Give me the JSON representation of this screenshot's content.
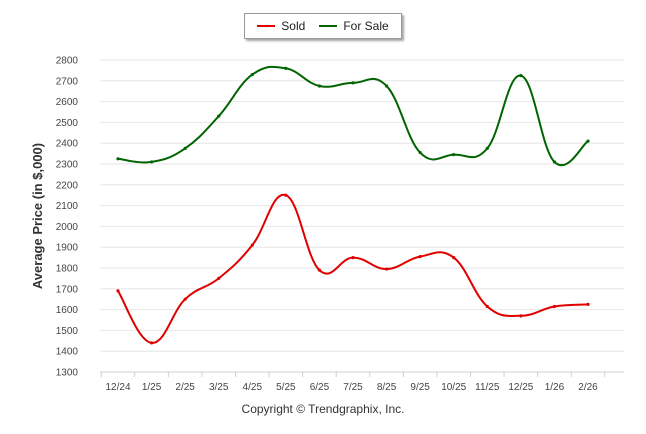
{
  "chart_data": {
    "type": "line",
    "categories": [
      "12/24",
      "1/25",
      "2/25",
      "3/25",
      "4/25",
      "5/25",
      "6/25",
      "7/25",
      "8/25",
      "9/25",
      "10/25",
      "11/25",
      "12/25",
      "1/26",
      "2/26"
    ],
    "series": [
      {
        "name": "Sold",
        "color": "#e00000",
        "values": [
          1690,
          1440,
          1650,
          1750,
          1910,
          2150,
          1790,
          1850,
          1795,
          1855,
          1850,
          1615,
          1570,
          1615,
          1625
        ]
      },
      {
        "name": "For Sale",
        "color": "#006400",
        "values": [
          2325,
          2310,
          2375,
          2530,
          2730,
          2760,
          2675,
          2690,
          2675,
          2355,
          2345,
          2375,
          2725,
          2310,
          2410
        ]
      }
    ],
    "ylabel": "Average Price (in $,000)",
    "xlabel": "",
    "ylim": [
      1300,
      2800
    ],
    "yticks": [
      1300,
      1400,
      1500,
      1600,
      1700,
      1800,
      1900,
      2000,
      2100,
      2200,
      2300,
      2400,
      2500,
      2600,
      2700,
      2800
    ],
    "grid": true,
    "legend": "top-center"
  },
  "footer": "Copyright © Trendgraphix, Inc."
}
